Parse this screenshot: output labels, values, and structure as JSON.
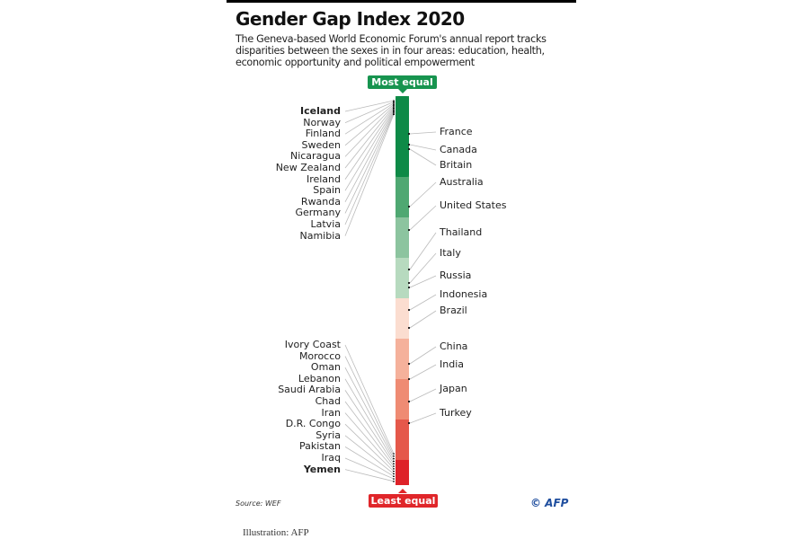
{
  "title": "Gender Gap Index 2020",
  "subtitle": "The Geneva-based World Economic Forum's annual report tracks disparities between the sexes in in four areas: education, health, economic opportunity and political empowerment",
  "top_label": "Most equal",
  "bottom_label": "Least equal",
  "colors": {
    "top": "#17944f",
    "bottom": "#e0262a",
    "segments": [
      "#0e8a47",
      "#219953",
      "#4fa872",
      "#8cc49f",
      "#b7dabf",
      "#fbddd0",
      "#f5b19b",
      "#ef8b73",
      "#e5584a",
      "#de2229"
    ]
  },
  "left_top": [
    "Iceland",
    "Norway",
    "Finland",
    "Sweden",
    "Nicaragua",
    "New Zealand",
    "Ireland",
    "Spain",
    "Rwanda",
    "Germany",
    "Latvia",
    "Namibia"
  ],
  "right": [
    "France",
    "Canada",
    "Britain",
    "Australia",
    "United States",
    "Thailand",
    "Italy",
    "Russia",
    "Indonesia",
    "Brazil",
    "China",
    "India",
    "Japan",
    "Turkey"
  ],
  "left_bottom": [
    "Ivory Coast",
    "Morocco",
    "Oman",
    "Lebanon",
    "Saudi Arabia",
    "Chad",
    "Iran",
    "D.R. Congo",
    "Syria",
    "Pakistan",
    "Iraq",
    "Yemen"
  ],
  "source": "Source: WEF",
  "credit": "© AFP",
  "caption": "Illustration: AFP"
}
